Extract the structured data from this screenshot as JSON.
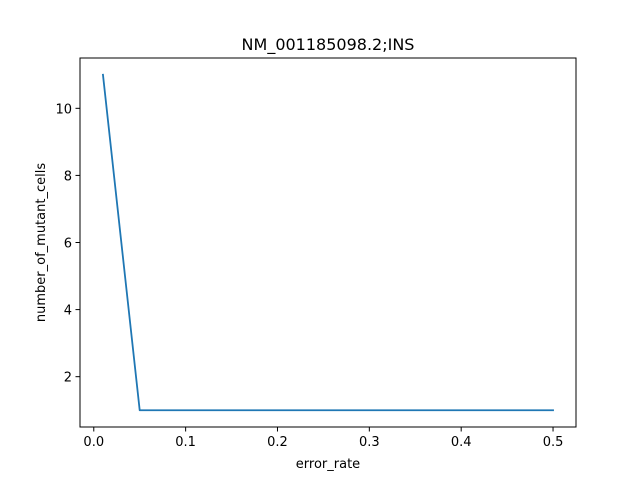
{
  "chart_data": {
    "type": "line",
    "title": "NM_001185098.2;INS",
    "xlabel": "error_rate",
    "ylabel": "number_of_mutant_cells",
    "xlim": [
      -0.015,
      0.525
    ],
    "ylim": [
      0.5,
      11.5
    ],
    "xticks": [
      0.0,
      0.1,
      0.2,
      0.3,
      0.4,
      0.5
    ],
    "xtick_labels": [
      "0.0",
      "0.1",
      "0.2",
      "0.3",
      "0.4",
      "0.5"
    ],
    "yticks": [
      2,
      4,
      6,
      8,
      10
    ],
    "ytick_labels": [
      "2",
      "4",
      "6",
      "8",
      "10"
    ],
    "grid": false,
    "series": [
      {
        "color": "#1f77b4",
        "x": [
          0.01,
          0.05,
          0.1,
          0.15,
          0.2,
          0.25,
          0.3,
          0.35,
          0.4,
          0.45,
          0.5
        ],
        "y": [
          11,
          1,
          1,
          1,
          1,
          1,
          1,
          1,
          1,
          1,
          1
        ]
      }
    ]
  }
}
